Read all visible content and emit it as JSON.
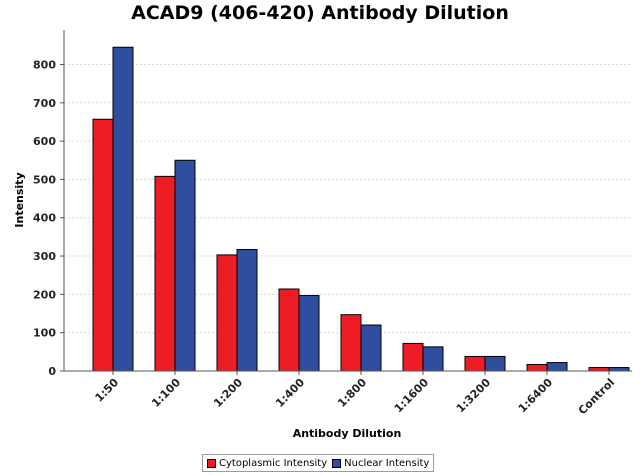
{
  "chart_data": {
    "type": "bar",
    "title": "ACAD9 (406-420) Antibody Dilution",
    "xlabel": "Antibody Dilution",
    "ylabel": "Intensity",
    "categories": [
      "1:50",
      "1:100",
      "1:200",
      "1:400",
      "1:800",
      "1:1600",
      "1:3200",
      "1:6400",
      "Control"
    ],
    "series": [
      {
        "name": "Cytoplasmic Intensity",
        "color": "#ee1c24",
        "values": [
          657,
          508,
          303,
          214,
          147,
          72,
          38,
          17,
          9
        ]
      },
      {
        "name": "Nuclear Intensity",
        "color": "#2f4ea0",
        "values": [
          845,
          550,
          317,
          197,
          120,
          63,
          38,
          22,
          9
        ]
      }
    ],
    "y_ticks": [
      "0",
      "100",
      "200",
      "300",
      "400",
      "500",
      "600",
      "700",
      "800"
    ],
    "ylim": [
      0,
      890
    ],
    "grid": true,
    "legend_position": "bottom-center"
  }
}
